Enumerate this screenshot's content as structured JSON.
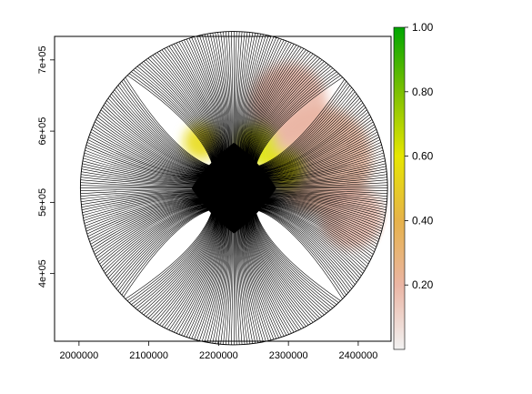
{
  "chart_data": {
    "type": "heatmap",
    "title": "",
    "xlabel": "",
    "ylabel": "",
    "xlim": [
      1965000,
      2447000
    ],
    "ylim": [
      305000,
      733000
    ],
    "x_ticks": [
      {
        "value": 2000000,
        "label": "2000000"
      },
      {
        "value": 2100000,
        "label": "2100000"
      },
      {
        "value": 2200000,
        "label": "2200000"
      },
      {
        "value": 2300000,
        "label": "2300000"
      },
      {
        "value": 2400000,
        "label": "2400000"
      }
    ],
    "y_ticks": [
      {
        "value": 400000,
        "label": "4e+05"
      },
      {
        "value": 500000,
        "label": "5e+05"
      },
      {
        "value": 600000,
        "label": "6e+05"
      },
      {
        "value": 700000,
        "label": "7e+05"
      }
    ],
    "network": {
      "description_free": true,
      "center": [
        2222000,
        520000
      ],
      "radius": 220000,
      "core_halfwidth": 60000,
      "spoke_count": 360,
      "line_color": "#000000"
    },
    "overlay_regions": [
      {
        "center": [
          2345000,
          560000
        ],
        "spread": 75000,
        "value": 0.22
      },
      {
        "center": [
          2300000,
          640000
        ],
        "spread": 55000,
        "value": 0.2
      },
      {
        "center": [
          2390000,
          480000
        ],
        "spread": 45000,
        "value": 0.18
      },
      {
        "center": [
          2255000,
          580000
        ],
        "spread": 30000,
        "value": 0.62
      },
      {
        "center": [
          2175000,
          585000
        ],
        "spread": 25000,
        "value": 0.55
      },
      {
        "center": [
          2295000,
          545000
        ],
        "spread": 28000,
        "value": 0.6
      }
    ],
    "legend": {
      "placement": "right",
      "range": [
        0,
        1
      ],
      "ticks": [
        {
          "value": 0.2,
          "label": "0.20"
        },
        {
          "value": 0.4,
          "label": "0.40"
        },
        {
          "value": 0.6,
          "label": "0.60"
        },
        {
          "value": 0.8,
          "label": "0.80"
        },
        {
          "value": 1.0,
          "label": "1.00"
        }
      ],
      "color_stops": [
        {
          "value": 0.0,
          "color": "#f2f2f2"
        },
        {
          "value": 0.2,
          "color": "#eab5a4"
        },
        {
          "value": 0.4,
          "color": "#e6b24a"
        },
        {
          "value": 0.6,
          "color": "#e6e600"
        },
        {
          "value": 0.8,
          "color": "#7cc000"
        },
        {
          "value": 1.0,
          "color": "#00a600"
        }
      ]
    }
  }
}
